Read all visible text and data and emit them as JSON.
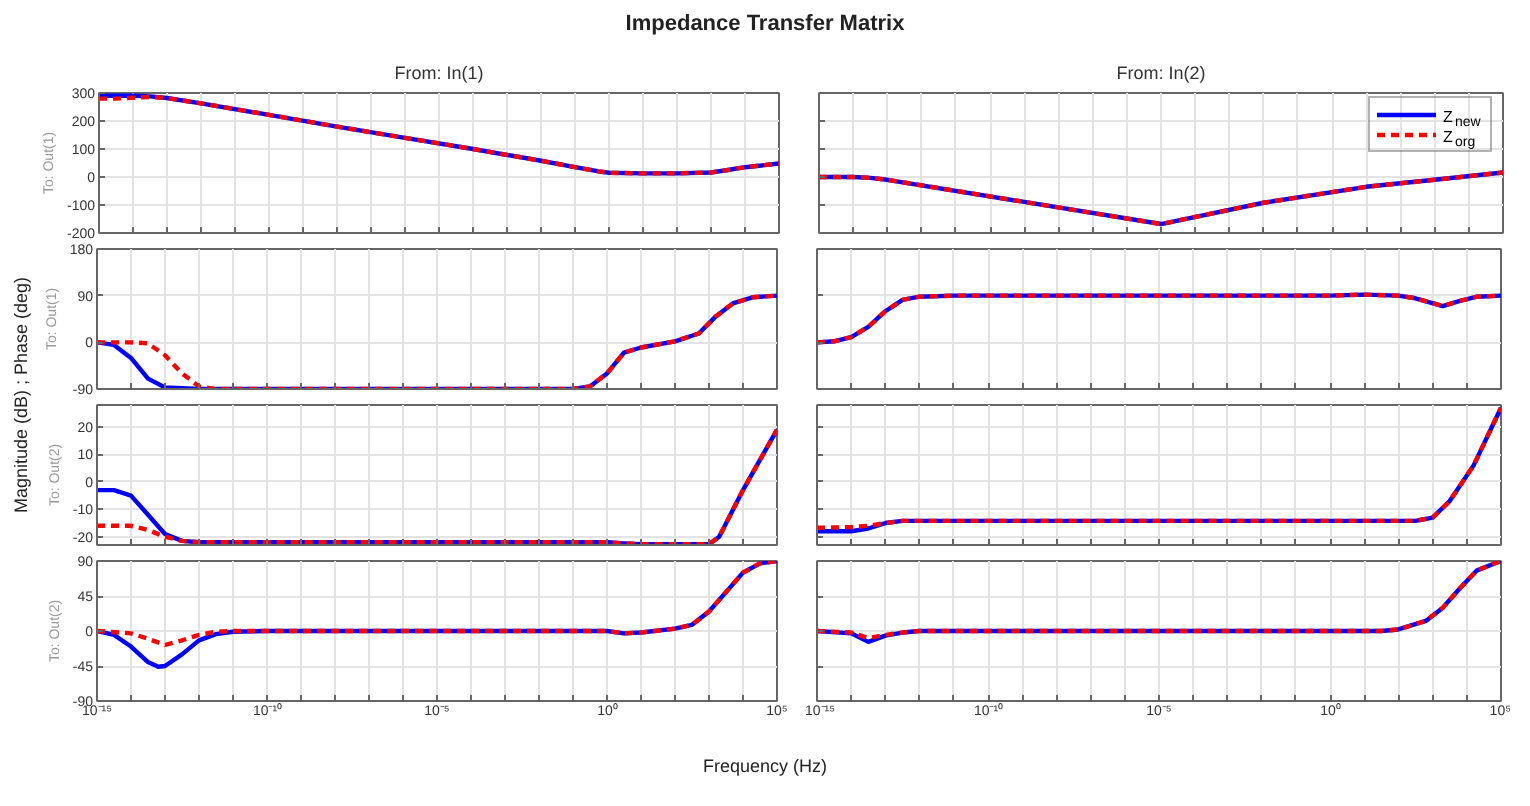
{
  "chart_data": [
    {
      "type": "line",
      "title": "Impedance Transfer Matrix",
      "subtitle": "From: In(1)",
      "ylabel": "To: Out(1)",
      "annotations": [
        "Magnitude (dB) ; Phase (deg)"
      ],
      "log": "x",
      "grid": true,
      "tick_labels": "y",
      "xlim": [
        1e-15,
        100000
      ],
      "ylim": [
        -200,
        300
      ],
      "yticks": [
        -200,
        -100,
        0,
        100,
        200,
        300
      ],
      "xticks": [
        {
          "value": 1e-15,
          "label": null
        },
        {
          "value": 1e-14,
          "label": null
        },
        {
          "value": 1e-13,
          "label": null
        },
        {
          "value": 1e-12,
          "label": null
        },
        {
          "value": 1e-11,
          "label": null
        },
        {
          "value": 1e-10,
          "label": null
        },
        {
          "value": 1e-09,
          "label": null
        },
        {
          "value": 1e-08,
          "label": null
        },
        {
          "value": 1e-07,
          "label": null
        },
        {
          "value": 1e-06,
          "label": null
        },
        {
          "value": 1e-05,
          "label": null
        },
        {
          "value": 0.0001,
          "label": null
        },
        {
          "value": 0.001,
          "label": null
        },
        {
          "value": 0.01,
          "label": null
        },
        {
          "value": 0.1,
          "label": null
        },
        {
          "value": 1,
          "label": null
        },
        {
          "value": 10,
          "label": null
        },
        {
          "value": 100,
          "label": null
        },
        {
          "value": 1000,
          "label": null
        },
        {
          "value": 10000,
          "label": null
        },
        {
          "value": 100000,
          "label": null
        }
      ],
      "series": [
        {
          "color": "#0000ff",
          "line_style": "solid",
          "x": [
            1e-15,
            1e-14,
            3.16e-14,
            1e-13,
            1e-12,
            1e-10,
            1e-08,
            1e-06,
            0.0001,
            0.01,
            0.1,
            0.501,
            1,
            10,
            100,
            1000,
            3162,
            10000,
            100000
          ],
          "values": [
            290,
            290,
            288,
            282,
            263,
            222,
            180,
            140,
            100,
            58,
            35,
            20,
            15,
            13,
            13,
            16,
            25,
            35,
            48
          ]
        },
        {
          "color": "#ff0000",
          "line_style": "dashed",
          "x": [
            1e-15,
            3.16e-15,
            1e-14,
            3.16e-14,
            1e-13,
            1e-12,
            1e-10,
            1e-08,
            1e-06,
            0.0001,
            0.01,
            0.1,
            0.501,
            1,
            10,
            100,
            1000,
            3162,
            10000,
            100000
          ],
          "values": [
            280,
            280,
            283,
            286,
            282,
            263,
            222,
            180,
            140,
            100,
            58,
            35,
            20,
            15,
            13,
            13,
            16,
            25,
            35,
            48
          ]
        }
      ]
    },
    {
      "type": "line",
      "subtitle": "From: In(2)",
      "log": "x",
      "grid": true,
      "tick_labels": false,
      "legend": "top right",
      "xlim": [
        1e-15,
        100000
      ],
      "ylim": [
        -200,
        300
      ],
      "yticks": [
        {
          "value": -200,
          "label": null
        },
        {
          "value": -100,
          "label": null
        },
        {
          "value": 0,
          "label": null
        },
        {
          "value": 100,
          "label": null
        },
        {
          "value": 200,
          "label": null
        },
        {
          "value": 300,
          "label": null
        }
      ],
      "xticks": [
        {
          "value": 1e-15,
          "label": null
        },
        {
          "value": 1e-14,
          "label": null
        },
        {
          "value": 1e-13,
          "label": null
        },
        {
          "value": 1e-12,
          "label": null
        },
        {
          "value": 1e-11,
          "label": null
        },
        {
          "value": 1e-10,
          "label": null
        },
        {
          "value": 1e-09,
          "label": null
        },
        {
          "value": 1e-08,
          "label": null
        },
        {
          "value": 1e-07,
          "label": null
        },
        {
          "value": 1e-06,
          "label": null
        },
        {
          "value": 1e-05,
          "label": null
        },
        {
          "value": 0.0001,
          "label": null
        },
        {
          "value": 0.001,
          "label": null
        },
        {
          "value": 0.01,
          "label": null
        },
        {
          "value": 0.1,
          "label": null
        },
        {
          "value": 1,
          "label": null
        },
        {
          "value": 10,
          "label": null
        },
        {
          "value": 100,
          "label": null
        },
        {
          "value": 1000,
          "label": null
        },
        {
          "value": 10000,
          "label": null
        },
        {
          "value": 100000,
          "label": null
        }
      ],
      "series": [
        {
          "name": "Z$_{new}$",
          "color": "#0000ff",
          "line_style": "solid",
          "x": [
            1e-15,
            1e-14,
            3.16e-14,
            1e-13,
            1e-09,
            1e-05,
            0.01,
            10,
            1000,
            100000
          ],
          "values": [
            0,
            0,
            -3,
            -10,
            -89,
            -168,
            -92,
            -35,
            -10,
            16
          ]
        },
        {
          "name": "Z$_{org}$",
          "color": "#ff0000",
          "line_style": "dashed",
          "x": [
            1e-15,
            1e-14,
            3.16e-14,
            1e-13,
            1e-09,
            1e-05,
            0.01,
            10,
            1000,
            100000
          ],
          "values": [
            0,
            0,
            -3,
            -10,
            -89,
            -168,
            -92,
            -35,
            -10,
            16
          ]
        }
      ]
    },
    {
      "type": "line",
      "ylabel": "To: Out(1)",
      "log": "x",
      "grid": true,
      "tick_labels": "y",
      "xlim": [
        1e-15,
        100000
      ],
      "ylim": [
        -90,
        180
      ],
      "yticks": [
        -90,
        0,
        90,
        180
      ],
      "xticks": [
        {
          "value": 1e-15,
          "label": null
        },
        {
          "value": 1e-14,
          "label": null
        },
        {
          "value": 1e-13,
          "label": null
        },
        {
          "value": 1e-12,
          "label": null
        },
        {
          "value": 1e-11,
          "label": null
        },
        {
          "value": 1e-10,
          "label": null
        },
        {
          "value": 1e-09,
          "label": null
        },
        {
          "value": 1e-08,
          "label": null
        },
        {
          "value": 1e-07,
          "label": null
        },
        {
          "value": 1e-06,
          "label": null
        },
        {
          "value": 1e-05,
          "label": null
        },
        {
          "value": 0.0001,
          "label": null
        },
        {
          "value": 0.001,
          "label": null
        },
        {
          "value": 0.01,
          "label": null
        },
        {
          "value": 0.1,
          "label": null
        },
        {
          "value": 1,
          "label": null
        },
        {
          "value": 10,
          "label": null
        },
        {
          "value": 100,
          "label": null
        },
        {
          "value": 1000,
          "label": null
        },
        {
          "value": 10000,
          "label": null
        },
        {
          "value": 100000,
          "label": null
        }
      ],
      "series": [
        {
          "color": "#0000ff",
          "line_style": "solid",
          "x": [
            1e-15,
            3.16e-15,
            1e-14,
            3.16e-14,
            1e-13,
            1e-12,
            0.1,
            0.316,
            1,
            3.16,
            10,
            100,
            501,
            1585,
            5012,
            19953,
            100000
          ],
          "values": [
            0,
            -5,
            -30,
            -70,
            -87,
            -90,
            -90,
            -85,
            -60,
            -20,
            -10,
            2,
            17,
            50,
            75,
            87,
            90
          ]
        },
        {
          "color": "#ff0000",
          "line_style": "dashed",
          "x": [
            1e-15,
            1e-14,
            3.16e-14,
            1e-13,
            3.16e-13,
            1e-12,
            3.16e-12,
            0.1,
            0.316,
            1,
            3.16,
            10,
            100,
            501,
            1585,
            5012,
            19953,
            100000
          ],
          "values": [
            0,
            0,
            -2,
            -25,
            -60,
            -85,
            -90,
            -90,
            -85,
            -60,
            -20,
            -10,
            2,
            17,
            50,
            75,
            87,
            90
          ]
        }
      ]
    },
    {
      "type": "line",
      "log": "x",
      "grid": true,
      "tick_labels": false,
      "xlim": [
        1e-15,
        100000
      ],
      "ylim": [
        -90,
        180
      ],
      "yticks": [
        {
          "value": -90,
          "label": null
        },
        {
          "value": 0,
          "label": null
        },
        {
          "value": 90,
          "label": null
        },
        {
          "value": 180,
          "label": null
        }
      ],
      "xticks": [
        {
          "value": 1e-15,
          "label": null
        },
        {
          "value": 1e-14,
          "label": null
        },
        {
          "value": 1e-13,
          "label": null
        },
        {
          "value": 1e-12,
          "label": null
        },
        {
          "value": 1e-11,
          "label": null
        },
        {
          "value": 1e-10,
          "label": null
        },
        {
          "value": 1e-09,
          "label": null
        },
        {
          "value": 1e-08,
          "label": null
        },
        {
          "value": 1e-07,
          "label": null
        },
        {
          "value": 1e-06,
          "label": null
        },
        {
          "value": 1e-05,
          "label": null
        },
        {
          "value": 0.0001,
          "label": null
        },
        {
          "value": 0.001,
          "label": null
        },
        {
          "value": 0.01,
          "label": null
        },
        {
          "value": 0.1,
          "label": null
        },
        {
          "value": 1,
          "label": null
        },
        {
          "value": 10,
          "label": null
        },
        {
          "value": 100,
          "label": null
        },
        {
          "value": 1000,
          "label": null
        },
        {
          "value": 10000,
          "label": null
        },
        {
          "value": 100000,
          "label": null
        }
      ],
      "series": [
        {
          "color": "#0000ff",
          "line_style": "solid",
          "x": [
            1e-15,
            3.16e-15,
            1e-14,
            3.16e-14,
            1e-13,
            3.16e-13,
            1e-12,
            1e-11,
            1,
            10,
            100,
            316,
            1995,
            6310,
            19953,
            100000
          ],
          "values": [
            0,
            2,
            10,
            30,
            60,
            82,
            88,
            90,
            90,
            92,
            90,
            85,
            70,
            80,
            88,
            90
          ]
        },
        {
          "color": "#ff0000",
          "line_style": "dashed",
          "x": [
            1e-15,
            3.16e-15,
            1e-14,
            3.16e-14,
            1e-13,
            3.16e-13,
            1e-12,
            1e-11,
            1,
            10,
            100,
            316,
            1995,
            6310,
            19953,
            100000
          ],
          "values": [
            0,
            2,
            10,
            30,
            60,
            82,
            88,
            90,
            90,
            92,
            90,
            85,
            70,
            80,
            88,
            90
          ]
        }
      ]
    },
    {
      "type": "line",
      "ylabel": "To: Out(2)",
      "log": "x",
      "grid": true,
      "tick_labels": "y",
      "xlim": [
        1e-15,
        100000
      ],
      "ylim": [
        -23,
        28
      ],
      "yticks": [
        -20,
        -10,
        0,
        10,
        20
      ],
      "xticks": [
        {
          "value": 1e-15,
          "label": null
        },
        {
          "value": 1e-14,
          "label": null
        },
        {
          "value": 1e-13,
          "label": null
        },
        {
          "value": 1e-12,
          "label": null
        },
        {
          "value": 1e-11,
          "label": null
        },
        {
          "value": 1e-10,
          "label": null
        },
        {
          "value": 1e-09,
          "label": null
        },
        {
          "value": 1e-08,
          "label": null
        },
        {
          "value": 1e-07,
          "label": null
        },
        {
          "value": 1e-06,
          "label": null
        },
        {
          "value": 1e-05,
          "label": null
        },
        {
          "value": 0.0001,
          "label": null
        },
        {
          "value": 0.001,
          "label": null
        },
        {
          "value": 0.01,
          "label": null
        },
        {
          "value": 0.1,
          "label": null
        },
        {
          "value": 1,
          "label": null
        },
        {
          "value": 10,
          "label": null
        },
        {
          "value": 100,
          "label": null
        },
        {
          "value": 1000,
          "label": null
        },
        {
          "value": 10000,
          "label": null
        },
        {
          "value": 100000,
          "label": null
        }
      ],
      "series": [
        {
          "color": "#0000ff",
          "line_style": "solid",
          "x": [
            1e-15,
            3.16e-15,
            1e-14,
            3.16e-14,
            1e-13,
            3.16e-13,
            1e-12,
            1,
            3.16,
            10,
            100,
            1000,
            1995,
            10000,
            100000
          ],
          "values": [
            -3,
            -3,
            -5,
            -12,
            -19,
            -21.5,
            -22,
            -22,
            -22.4,
            -22.7,
            -22.7,
            -22.7,
            -20,
            -3,
            19
          ]
        },
        {
          "color": "#ff0000",
          "line_style": "dashed",
          "x": [
            1e-15,
            1e-14,
            3.16e-14,
            1e-13,
            3.16e-13,
            1e-12,
            1,
            3.16,
            10,
            100,
            1000,
            1995,
            10000,
            100000
          ],
          "values": [
            -16,
            -16,
            -17.5,
            -20,
            -21.5,
            -22,
            -22,
            -22.4,
            -22.7,
            -22.7,
            -22.7,
            -20,
            -3,
            19
          ]
        }
      ]
    },
    {
      "type": "line",
      "log": "x",
      "grid": true,
      "tick_labels": false,
      "xlim": [
        1e-15,
        100000
      ],
      "ylim": [
        -23,
        28
      ],
      "yticks": [
        {
          "value": -20,
          "label": null
        },
        {
          "value": -10,
          "label": null
        },
        {
          "value": 0,
          "label": null
        },
        {
          "value": 10,
          "label": null
        },
        {
          "value": 20,
          "label": null
        }
      ],
      "xticks": [
        {
          "value": 1e-15,
          "label": null
        },
        {
          "value": 1e-14,
          "label": null
        },
        {
          "value": 1e-13,
          "label": null
        },
        {
          "value": 1e-12,
          "label": null
        },
        {
          "value": 1e-11,
          "label": null
        },
        {
          "value": 1e-10,
          "label": null
        },
        {
          "value": 1e-09,
          "label": null
        },
        {
          "value": 1e-08,
          "label": null
        },
        {
          "value": 1e-07,
          "label": null
        },
        {
          "value": 1e-06,
          "label": null
        },
        {
          "value": 1e-05,
          "label": null
        },
        {
          "value": 0.0001,
          "label": null
        },
        {
          "value": 0.001,
          "label": null
        },
        {
          "value": 0.01,
          "label": null
        },
        {
          "value": 0.1,
          "label": null
        },
        {
          "value": 1,
          "label": null
        },
        {
          "value": 10,
          "label": null
        },
        {
          "value": 100,
          "label": null
        },
        {
          "value": 1000,
          "label": null
        },
        {
          "value": 10000,
          "label": null
        },
        {
          "value": 100000,
          "label": null
        }
      ],
      "series": [
        {
          "color": "#0000ff",
          "line_style": "solid",
          "x": [
            1e-15,
            1e-14,
            3.16e-14,
            1e-13,
            3.16e-13,
            316,
            1000,
            3162,
            15849,
            100000
          ],
          "values": [
            -18,
            -18,
            -17,
            -15,
            -14.2,
            -14.2,
            -13,
            -7,
            6,
            27
          ]
        },
        {
          "color": "#ff0000",
          "line_style": "dashed",
          "x": [
            1e-15,
            1e-14,
            3.16e-14,
            1e-13,
            3.16e-13,
            316,
            1000,
            3162,
            15849,
            100000
          ],
          "values": [
            -16.7,
            -16.5,
            -16,
            -15,
            -14.2,
            -14.2,
            -13,
            -7,
            6,
            27
          ]
        }
      ]
    },
    {
      "type": "line",
      "ylabel": "To: Out(2)",
      "xlabel": "Frequency  (Hz)",
      "log": "x",
      "grid": true,
      "xlim": [
        1e-15,
        100000
      ],
      "ylim": [
        -90,
        90
      ],
      "yticks": [
        -90,
        -45,
        0,
        45,
        90
      ],
      "xticks": [
        {
          "value": 1e-15,
          "label": "10⁻¹⁵"
        },
        {
          "value": 1e-14,
          "label": null
        },
        {
          "value": 1e-13,
          "label": null
        },
        {
          "value": 1e-12,
          "label": null
        },
        {
          "value": 1e-11,
          "label": null
        },
        {
          "value": 1e-10,
          "label": "10⁻¹⁰"
        },
        {
          "value": 1e-09,
          "label": null
        },
        {
          "value": 1e-08,
          "label": null
        },
        {
          "value": 1e-07,
          "label": null
        },
        {
          "value": 1e-06,
          "label": null
        },
        {
          "value": 1e-05,
          "label": "10⁻⁵"
        },
        {
          "value": 0.0001,
          "label": null
        },
        {
          "value": 0.001,
          "label": null
        },
        {
          "value": 0.01,
          "label": null
        },
        {
          "value": 0.1,
          "label": null
        },
        {
          "value": 1,
          "label": "10⁰"
        },
        {
          "value": 10,
          "label": null
        },
        {
          "value": 100,
          "label": null
        },
        {
          "value": 1000,
          "label": null
        },
        {
          "value": 10000,
          "label": null
        },
        {
          "value": 100000,
          "label": "10⁵"
        }
      ],
      "series": [
        {
          "color": "#0000ff",
          "line_style": "solid",
          "x": [
            1e-15,
            3.16e-15,
            1e-14,
            3.16e-14,
            6.31e-14,
            1e-13,
            3.16e-13,
            1e-12,
            3.16e-12,
            1e-11,
            1e-10,
            1,
            3.16,
            10,
            100,
            316,
            1000,
            3162,
            10000,
            31623,
            100000
          ],
          "values": [
            0,
            -5,
            -20,
            -40,
            -46,
            -45,
            -30,
            -12,
            -4,
            -1,
            0,
            0,
            -3,
            -2,
            3,
            8,
            25,
            50,
            75,
            87,
            90
          ]
        },
        {
          "color": "#ff0000",
          "line_style": "dashed",
          "x": [
            1e-15,
            1e-14,
            3.16e-14,
            1e-13,
            3.16e-13,
            1e-12,
            3.16e-12,
            1e-11,
            1e-10,
            1,
            3.16,
            10,
            100,
            316,
            1000,
            3162,
            10000,
            31623,
            100000
          ],
          "values": [
            0,
            -3,
            -10,
            -18,
            -12,
            -5,
            -1,
            0,
            0,
            0,
            -3,
            -2,
            3,
            8,
            25,
            50,
            75,
            87,
            90
          ]
        }
      ]
    },
    {
      "type": "line",
      "log": "x",
      "grid": true,
      "tick_labels": "x",
      "xlim": [
        1e-15,
        100000
      ],
      "ylim": [
        -90,
        90
      ],
      "yticks": [
        {
          "value": -90,
          "label": null
        },
        {
          "value": -45,
          "label": null
        },
        {
          "value": 0,
          "label": null
        },
        {
          "value": 45,
          "label": null
        },
        {
          "value": 90,
          "label": null
        }
      ],
      "xticks": [
        {
          "value": 1e-15,
          "label": "10⁻¹⁵"
        },
        {
          "value": 1e-14,
          "label": null
        },
        {
          "value": 1e-13,
          "label": null
        },
        {
          "value": 1e-12,
          "label": null
        },
        {
          "value": 1e-11,
          "label": null
        },
        {
          "value": 1e-10,
          "label": "10⁻¹⁰"
        },
        {
          "value": 1e-09,
          "label": null
        },
        {
          "value": 1e-08,
          "label": null
        },
        {
          "value": 1e-07,
          "label": null
        },
        {
          "value": 1e-06,
          "label": null
        },
        {
          "value": 1e-05,
          "label": "10⁻⁵"
        },
        {
          "value": 0.0001,
          "label": null
        },
        {
          "value": 0.001,
          "label": null
        },
        {
          "value": 0.01,
          "label": null
        },
        {
          "value": 0.1,
          "label": null
        },
        {
          "value": 1,
          "label": "10⁰"
        },
        {
          "value": 10,
          "label": null
        },
        {
          "value": 100,
          "label": null
        },
        {
          "value": 1000,
          "label": null
        },
        {
          "value": 10000,
          "label": null
        },
        {
          "value": 100000,
          "label": "10⁵"
        }
      ],
      "series": [
        {
          "color": "#0000ff",
          "line_style": "solid",
          "x": [
            1e-15,
            1e-14,
            3.16e-14,
            1e-13,
            3.16e-13,
            1e-12,
            31.6,
            100,
            631,
            1995,
            6310,
            19953,
            100000
          ],
          "values": [
            0,
            -3,
            -14,
            -6,
            -2,
            0,
            0,
            2,
            13,
            30,
            55,
            78,
            90
          ]
        },
        {
          "color": "#ff0000",
          "line_style": "dashed",
          "x": [
            1e-15,
            1e-14,
            3.16e-14,
            1e-13,
            3.16e-13,
            1e-12,
            31.6,
            100,
            631,
            1995,
            6310,
            19953,
            100000
          ],
          "values": [
            0,
            -2,
            -9,
            -5,
            -2,
            0,
            0,
            2,
            13,
            30,
            55,
            78,
            90
          ]
        }
      ]
    }
  ]
}
